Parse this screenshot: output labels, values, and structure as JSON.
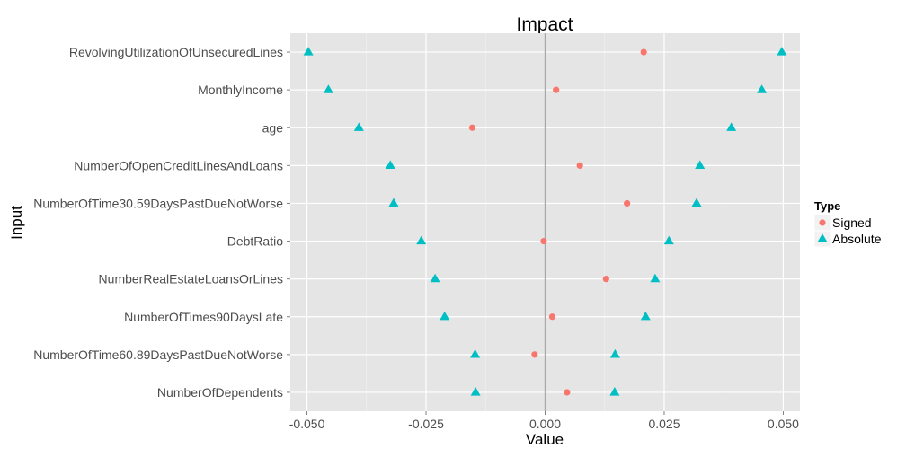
{
  "chart_data": {
    "type": "scatter",
    "title": "Impact",
    "xlabel": "Value",
    "ylabel": "Input",
    "xlim": [
      -0.0535,
      0.0535
    ],
    "x_ticks": [
      -0.05,
      -0.025,
      0.0,
      0.025,
      0.05
    ],
    "x_tick_labels": [
      "-0.050",
      "-0.025",
      "0.000",
      "0.025",
      "0.050"
    ],
    "reference_line_x": 0,
    "grid": true,
    "legend_title": "Type",
    "legend_position": "right",
    "categories": [
      "RevolvingUtilizationOfUnsecuredLines",
      "MonthlyIncome",
      "age",
      "NumberOfOpenCreditLinesAndLoans",
      "NumberOfTime30.59DaysPastDueNotWorse",
      "DebtRatio",
      "NumberRealEstateLoansOrLines",
      "NumberOfTimes90DaysLate",
      "NumberOfTime60.89DaysPastDueNotWorse",
      "NumberOfDependents"
    ],
    "series": [
      {
        "name": "Signed",
        "marker": "circle",
        "color": "#F8766D",
        "values": [
          0.0207,
          0.0023,
          -0.0153,
          0.0073,
          0.0172,
          -0.0003,
          0.0128,
          0.0015,
          -0.0022,
          0.0046
        ]
      },
      {
        "name": "Absolute",
        "marker": "triangle",
        "color": "#00BFC4",
        "values": [
          [
            -0.0497,
            0.0497
          ],
          [
            -0.0455,
            0.0455
          ],
          [
            -0.0391,
            0.0391
          ],
          [
            -0.0325,
            0.0325
          ],
          [
            -0.0318,
            0.0318
          ],
          [
            -0.026,
            0.026
          ],
          [
            -0.0231,
            0.0231
          ],
          [
            -0.0211,
            0.0211
          ],
          [
            -0.0147,
            0.0147
          ],
          [
            -0.0146,
            0.0146
          ]
        ]
      }
    ]
  }
}
